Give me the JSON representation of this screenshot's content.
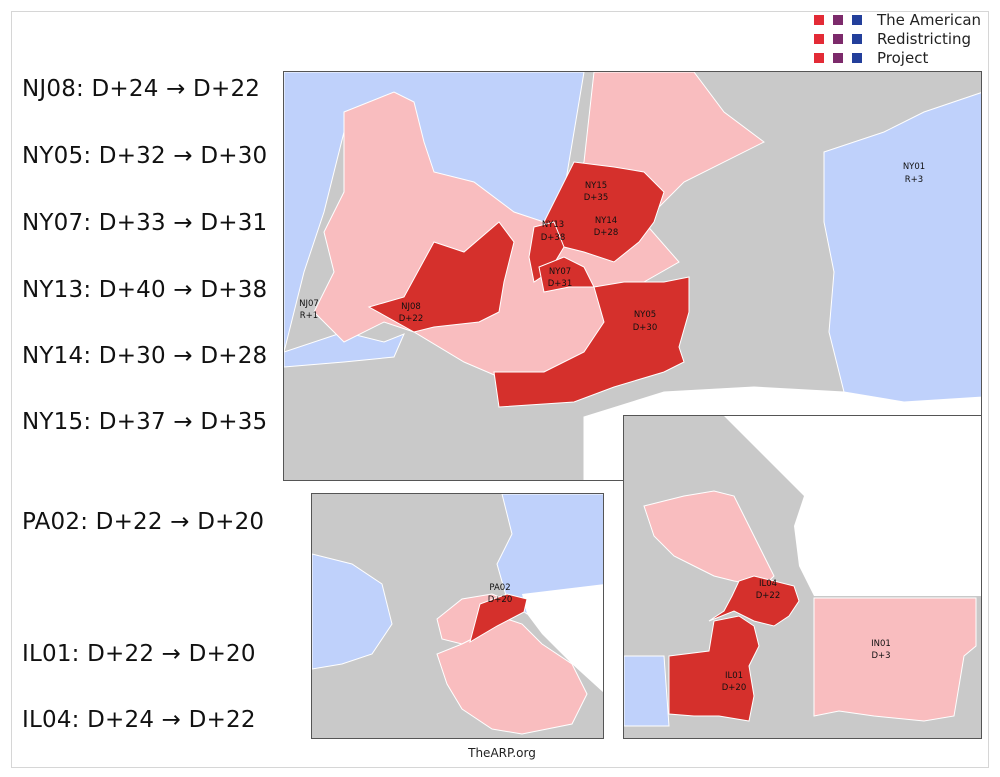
{
  "logo": {
    "lines": [
      "The American",
      "Redistricting",
      "Project"
    ],
    "colors": [
      "#e32b36",
      "#7c2a6b",
      "#233f9b"
    ]
  },
  "changes": [
    {
      "text": "NJ08: D+24 → D+22"
    },
    {
      "text": "NY05: D+32 → D+30"
    },
    {
      "text": "NY07: D+33 → D+31"
    },
    {
      "text": "NY13: D+40 → D+38"
    },
    {
      "text": "NY14: D+30 → D+28"
    },
    {
      "text": "NY15: D+37 → D+35"
    },
    {
      "text": "PA02: D+22 → D+20"
    },
    {
      "text": "IL01: D+22 → D+20"
    },
    {
      "text": "IL04: D+24 → D+22"
    }
  ],
  "map_colors": {
    "water": "#ffffff",
    "land_other": "#c9c9c9",
    "republican": "#bfd1fb",
    "dem_light": "#f9bdbf",
    "dem_highlight": "#d5302c",
    "border": "#ffffff"
  },
  "nyc_labels": {
    "ny01": [
      "NY01",
      "R+3"
    ],
    "ny15": [
      "NY15",
      "D+35"
    ],
    "ny13": [
      "NY13",
      "D+38"
    ],
    "ny14": [
      "NY14",
      "D+28"
    ],
    "ny07": [
      "NY07",
      "D+31"
    ],
    "nj07": [
      "NJ07",
      "R+1"
    ],
    "nj08": [
      "NJ08",
      "D+22"
    ],
    "ny05": [
      "NY05",
      "D+30"
    ]
  },
  "pa_labels": {
    "pa02": [
      "PA02",
      "D+20"
    ]
  },
  "il_labels": {
    "il04": [
      "IL04",
      "D+22"
    ],
    "il01": [
      "IL01",
      "D+20"
    ],
    "in01": [
      "IN01",
      "D+3"
    ]
  },
  "footer": "TheARP.org"
}
